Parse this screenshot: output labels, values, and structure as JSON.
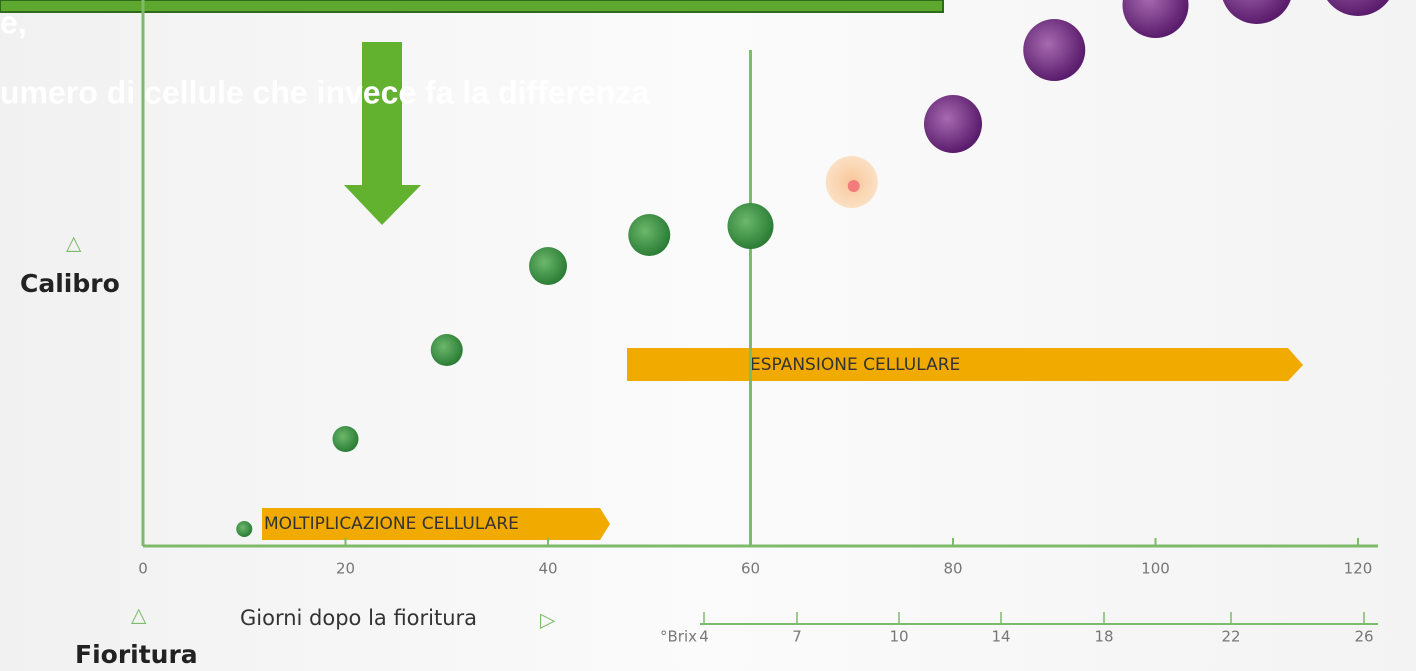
{
  "overlay": {
    "lines": [
      "e,",
      "umero di cellule che invece fa la differenza"
    ]
  },
  "chart_data": {
    "type": "scatter",
    "x": [
      10,
      20,
      30,
      40,
      50,
      60,
      70,
      80,
      90,
      100,
      110,
      120
    ],
    "xlim": [
      0,
      120
    ],
    "xticks": [
      0,
      20,
      40,
      60,
      80,
      100,
      120
    ],
    "xlabel": "Giorni dopo la fioritura",
    "ylabel": "Calibro",
    "origin_label": "Fioritura",
    "marker_line_x": 60,
    "phases": [
      {
        "label": "MOLTIPLICAZIONE CELLULARE"
      },
      {
        "label": "ESPANSIONE CELLULARE"
      }
    ],
    "brix": {
      "label": "°Brix",
      "ticks": [
        4,
        7,
        10,
        14,
        18,
        22,
        26
      ]
    }
  }
}
